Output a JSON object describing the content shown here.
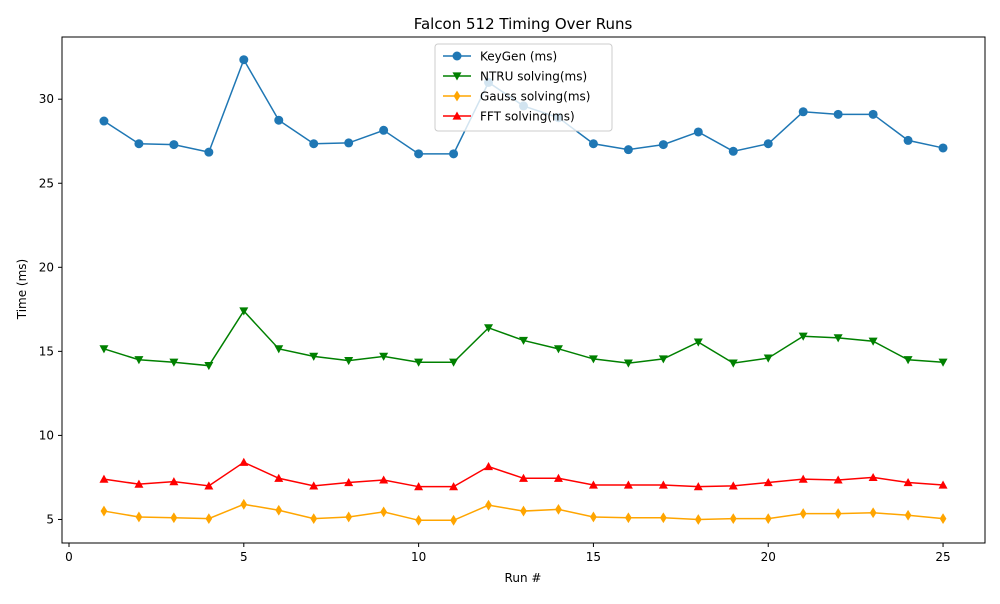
{
  "chart_data": {
    "type": "line",
    "title": "Falcon 512 Timing Over Runs",
    "xlabel": "Run #",
    "ylabel": "Time (ms)",
    "xlim": [
      -0.2,
      26.2
    ],
    "ylim": [
      3.6,
      33.7
    ],
    "xticks": [
      0,
      5,
      10,
      15,
      20,
      25
    ],
    "yticks": [
      5,
      10,
      15,
      20,
      25,
      30
    ],
    "grid": false,
    "legend_position": "upper-center",
    "x": [
      1,
      2,
      3,
      4,
      5,
      6,
      7,
      8,
      9,
      10,
      11,
      12,
      13,
      14,
      15,
      16,
      17,
      18,
      19,
      20,
      21,
      22,
      23,
      24,
      25
    ],
    "series": [
      {
        "name": "KeyGen (ms)",
        "color": "#1f77b4",
        "marker": "circle",
        "values": [
          28.7,
          27.35,
          27.3,
          26.85,
          32.35,
          28.75,
          27.35,
          27.4,
          28.15,
          26.75,
          26.75,
          31.0,
          29.6,
          28.9,
          27.35,
          27.0,
          27.3,
          28.05,
          26.9,
          27.35,
          29.25,
          29.1,
          29.1,
          27.55,
          27.1
        ]
      },
      {
        "name": "NTRU solving(ms)",
        "color": "#008000",
        "marker": "triangle-down",
        "values": [
          15.15,
          14.5,
          14.35,
          14.15,
          17.4,
          15.15,
          14.7,
          14.45,
          14.7,
          14.35,
          14.35,
          16.4,
          15.65,
          15.15,
          14.55,
          14.3,
          14.55,
          15.55,
          14.3,
          14.6,
          15.9,
          15.8,
          15.6,
          14.5,
          14.35
        ]
      },
      {
        "name": "Gauss solving(ms)",
        "color": "#ffa500",
        "marker": "diamond",
        "values": [
          5.5,
          5.15,
          5.1,
          5.05,
          5.9,
          5.55,
          5.05,
          5.15,
          5.45,
          4.95,
          4.95,
          5.85,
          5.5,
          5.6,
          5.15,
          5.1,
          5.1,
          5.0,
          5.05,
          5.05,
          5.35,
          5.35,
          5.4,
          5.25,
          5.05
        ]
      },
      {
        "name": "FFT solving(ms)",
        "color": "#ff0000",
        "marker": "triangle-up",
        "values": [
          7.4,
          7.1,
          7.25,
          7.0,
          8.4,
          7.45,
          7.0,
          7.2,
          7.35,
          6.95,
          6.95,
          8.15,
          7.45,
          7.45,
          7.05,
          7.05,
          7.05,
          6.95,
          7.0,
          7.2,
          7.4,
          7.35,
          7.5,
          7.2,
          7.05
        ]
      }
    ]
  }
}
